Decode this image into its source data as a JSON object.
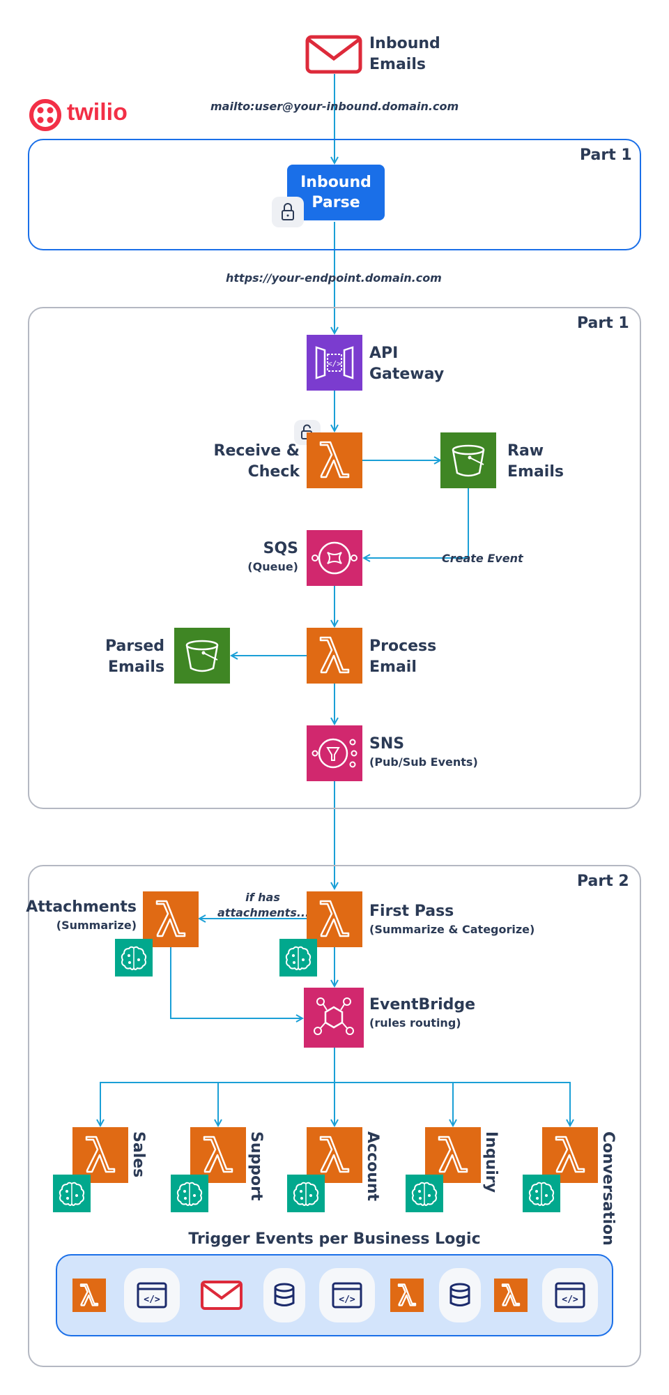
{
  "header": {
    "inbound_emails": [
      "Inbound",
      "Emails"
    ],
    "brand_name": "twilio",
    "brand_color": "#f22f46",
    "mailto_label": "mailto:user@your-inbound.domain.com",
    "endpoint_label": "https://your-endpoint.domain.com"
  },
  "twilio_section": {
    "part_label": "Part 1",
    "inbound_parse": [
      "Inbound",
      "Parse"
    ]
  },
  "aws_section": {
    "part_label": "Part 1",
    "api_gateway": [
      "API",
      "Gateway"
    ],
    "receive_check": [
      "Receive &",
      "Check"
    ],
    "raw_emails": [
      "Raw",
      "Emails"
    ],
    "sqs": "SQS",
    "sqs_sub": "(Queue)",
    "create_event": "Create Event",
    "parsed_emails": [
      "Parsed",
      "Emails"
    ],
    "process_email": [
      "Process",
      "Email"
    ],
    "sns": "SNS",
    "sns_sub": "(Pub/Sub Events)"
  },
  "part2": {
    "part_label": "Part 2",
    "attachments": "Attachments",
    "attachments_sub": "(Summarize)",
    "if_has": [
      "if  has",
      "attachments..."
    ],
    "first_pass": "First Pass",
    "first_pass_sub": "(Summarize & Categorize)",
    "eventbridge": "EventBridge",
    "eventbridge_sub": "(rules routing)",
    "routes": [
      "Sales",
      "Support",
      "Account",
      "Inquiry",
      "Conversation"
    ],
    "trigger_title": "Trigger Events per Business Logic",
    "trigger_icons": [
      "lambda-icon",
      "code-icon",
      "email-icon",
      "database-icon",
      "code-icon",
      "lambda-icon",
      "database-icon",
      "lambda-icon",
      "code-icon"
    ]
  },
  "colors": {
    "lambda": "#e06a14",
    "s3": "#3f8624",
    "api_gateway": "#7b3ccf",
    "sqs_sns_eventbridge": "#d1286e",
    "bedrock": "#01a88d",
    "arrow": "#1a9fd6",
    "twilio_button": "#1a6fe8"
  }
}
